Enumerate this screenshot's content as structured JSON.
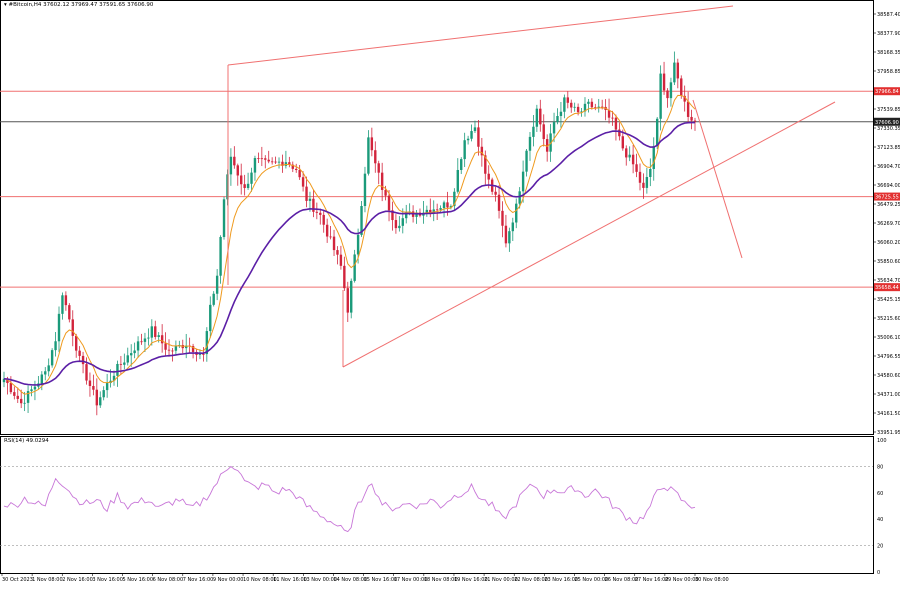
{
  "header": {
    "symbol_line": "#Bitcoin,H4  37602.12  37969.47  37591.65  37606.90"
  },
  "rsi_header": "RSI(14) 49.0294",
  "colors": {
    "bull": "#1a9a7a",
    "bear": "#d2243c",
    "ema_fast": "#ef9a1e",
    "ema_slow": "#5b1fa6",
    "level": "#f07070",
    "current": "#555555",
    "rsi": "#c877d8",
    "axis": "#000000"
  },
  "chart_data": {
    "type": "candlestick",
    "ylim": [
      33951.95,
      38900
    ],
    "y_ticks": [
      "38587.40",
      "38377.90",
      "38168.35",
      "37958.85",
      "37749.35",
      "37539.85",
      "37330.35",
      "37123.85",
      "36904.70",
      "36694.00",
      "36479.25",
      "36269.70",
      "36060.20",
      "35850.60",
      "35634.70",
      "35425.15",
      "35215.60",
      "35006.10",
      "34796.55",
      "34580.60",
      "34371.00",
      "34161.50",
      "33951.95"
    ],
    "levels": [
      {
        "label": "37966.84",
        "value": 37966.84
      },
      {
        "label": "36725.55",
        "value": 36725.55
      },
      {
        "label": "35658.44",
        "value": 35658.44
      }
    ],
    "current_price": {
      "label": "37606.90",
      "value": 37606.9
    },
    "x_ticks": [
      "30 Oct 2023",
      "1 Nov 08:00",
      "2 Nov 16:00",
      "3 Nov 16:00",
      "5 Nov 16:00",
      "6 Nov 08:00",
      "7 Nov 16:00",
      "9 Nov 00:00",
      "10 Nov 08:00",
      "11 Nov 16:00",
      "13 Nov 00:00",
      "14 Nov 08:00",
      "15 Nov 16:00",
      "17 Nov 00:00",
      "18 Nov 08:00",
      "19 Nov 16:00",
      "21 Nov 00:00",
      "22 Nov 08:00",
      "23 Nov 16:00",
      "25 Nov 00:00",
      "26 Nov 08:00",
      "27 Nov 16:00",
      "29 Nov 00:00",
      "30 Nov 08:00"
    ],
    "anchors": [
      [
        0,
        34580
      ],
      [
        5,
        34290
      ],
      [
        12,
        34650
      ],
      [
        15,
        35050
      ],
      [
        17,
        35600
      ],
      [
        22,
        34800
      ],
      [
        27,
        34300
      ],
      [
        32,
        34650
      ],
      [
        38,
        34950
      ],
      [
        43,
        35150
      ],
      [
        48,
        34900
      ],
      [
        53,
        35000
      ],
      [
        58,
        34850
      ],
      [
        60,
        35400
      ],
      [
        62,
        35800
      ],
      [
        64,
        36700
      ],
      [
        66,
        37200
      ],
      [
        70,
        36800
      ],
      [
        73,
        37150
      ],
      [
        77,
        37100
      ],
      [
        82,
        37150
      ],
      [
        85,
        37050
      ],
      [
        88,
        36700
      ],
      [
        92,
        36500
      ],
      [
        95,
        36200
      ],
      [
        98,
        35900
      ],
      [
        100,
        35400
      ],
      [
        103,
        36300
      ],
      [
        106,
        37400
      ],
      [
        108,
        37100
      ],
      [
        111,
        36700
      ],
      [
        114,
        36400
      ],
      [
        117,
        36500
      ],
      [
        121,
        36550
      ],
      [
        126,
        36600
      ],
      [
        130,
        36650
      ],
      [
        134,
        37400
      ],
      [
        137,
        37550
      ],
      [
        140,
        37000
      ],
      [
        143,
        36700
      ],
      [
        146,
        36200
      ],
      [
        149,
        36600
      ],
      [
        152,
        37300
      ],
      [
        155,
        37750
      ],
      [
        158,
        37250
      ],
      [
        160,
        37600
      ],
      [
        163,
        37850
      ],
      [
        167,
        37700
      ],
      [
        170,
        37800
      ],
      [
        174,
        37750
      ],
      [
        177,
        37600
      ],
      [
        180,
        37300
      ],
      [
        183,
        37100
      ],
      [
        186,
        36800
      ],
      [
        188,
        37050
      ],
      [
        190,
        37600
      ],
      [
        191,
        38150
      ],
      [
        193,
        37900
      ],
      [
        195,
        38250
      ],
      [
        197,
        37950
      ],
      [
        199,
        37700
      ],
      [
        201,
        37607
      ]
    ],
    "ema_fast_period": 8,
    "ema_slow_period": 34,
    "rsi": {
      "ylim": [
        0,
        100
      ],
      "y_ticks": [
        "100",
        "80",
        "60",
        "40",
        "20",
        "0"
      ],
      "levels": [
        80,
        20
      ],
      "anchors": [
        [
          0,
          52
        ],
        [
          3,
          50
        ],
        [
          6,
          56
        ],
        [
          9,
          52
        ],
        [
          12,
          50
        ],
        [
          15,
          72
        ],
        [
          18,
          65
        ],
        [
          21,
          55
        ],
        [
          24,
          52
        ],
        [
          27,
          54
        ],
        [
          30,
          48
        ],
        [
          33,
          58
        ],
        [
          36,
          50
        ],
        [
          39,
          53
        ],
        [
          42,
          55
        ],
        [
          45,
          48
        ],
        [
          48,
          52
        ],
        [
          51,
          55
        ],
        [
          54,
          48
        ],
        [
          57,
          52
        ],
        [
          60,
          60
        ],
        [
          63,
          72
        ],
        [
          66,
          82
        ],
        [
          68,
          78
        ],
        [
          70,
          68
        ],
        [
          73,
          64
        ],
        [
          76,
          66
        ],
        [
          79,
          60
        ],
        [
          82,
          63
        ],
        [
          85,
          58
        ],
        [
          88,
          50
        ],
        [
          91,
          45
        ],
        [
          94,
          40
        ],
        [
          97,
          35
        ],
        [
          100,
          28
        ],
        [
          102,
          45
        ],
        [
          104,
          55
        ],
        [
          106,
          68
        ],
        [
          108,
          62
        ],
        [
          110,
          52
        ],
        [
          112,
          48
        ],
        [
          115,
          50
        ],
        [
          118,
          52
        ],
        [
          121,
          50
        ],
        [
          124,
          55
        ],
        [
          127,
          50
        ],
        [
          130,
          56
        ],
        [
          133,
          60
        ],
        [
          136,
          64
        ],
        [
          139,
          55
        ],
        [
          142,
          50
        ],
        [
          145,
          40
        ],
        [
          148,
          48
        ],
        [
          151,
          60
        ],
        [
          154,
          66
        ],
        [
          157,
          58
        ],
        [
          160,
          63
        ],
        [
          163,
          60
        ],
        [
          166,
          64
        ],
        [
          169,
          58
        ],
        [
          172,
          62
        ],
        [
          175,
          56
        ],
        [
          178,
          48
        ],
        [
          181,
          42
        ],
        [
          184,
          38
        ],
        [
          187,
          45
        ],
        [
          190,
          60
        ],
        [
          192,
          66
        ],
        [
          194,
          62
        ],
        [
          196,
          58
        ],
        [
          198,
          52
        ],
        [
          201,
          49
        ]
      ]
    }
  }
}
